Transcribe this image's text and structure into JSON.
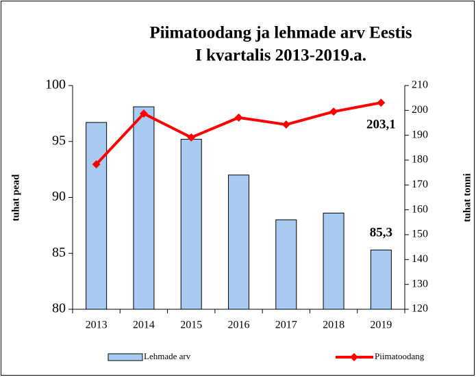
{
  "chart_data": {
    "type": "bar_line",
    "title": [
      "Piimatoodang  ja lehmade arv Eestis",
      "I kvartalis 2013-2019.a."
    ],
    "categories": [
      "2013",
      "2014",
      "2015",
      "2016",
      "2017",
      "2018",
      "2019"
    ],
    "series": [
      {
        "name": "Lehmade arv",
        "type": "bar",
        "color": "#a6caf0",
        "axis": "y",
        "values": [
          96.7,
          98.1,
          95.2,
          92.0,
          88.0,
          88.6,
          85.3
        ],
        "value_labels": [
          null,
          null,
          null,
          null,
          null,
          null,
          "85,3"
        ]
      },
      {
        "name": "Piimatoodang",
        "type": "line",
        "color": "#ff0000",
        "axis": "y2",
        "values": [
          178.3,
          198.7,
          189.1,
          197.1,
          194.3,
          199.5,
          203.1
        ],
        "value_labels": [
          null,
          null,
          null,
          null,
          null,
          null,
          "203,1"
        ]
      }
    ],
    "ylabel": "tuhat pead",
    "y2label": "tuhat tonni",
    "ylim": [
      80,
      100
    ],
    "yticks": [
      80,
      85,
      90,
      95,
      100
    ],
    "y2lim": [
      120,
      210
    ],
    "y2ticks": [
      120,
      130,
      140,
      150,
      160,
      170,
      180,
      190,
      200,
      210
    ],
    "legend": "bottom"
  }
}
